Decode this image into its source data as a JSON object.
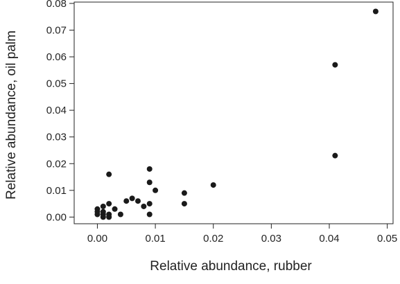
{
  "chart_data": {
    "type": "scatter",
    "title": "",
    "xlabel": "Relative abundance, rubber",
    "ylabel": "Relative abundance, oil palm",
    "xlim": [
      -0.004,
      0.051
    ],
    "ylim": [
      -0.0025,
      0.0805
    ],
    "x_ticks": [
      0.0,
      0.01,
      0.02,
      0.03,
      0.04,
      0.05
    ],
    "x_tick_labels": [
      "0.00",
      "0.01",
      "0.02",
      "0.03",
      "0.04",
      "0.05"
    ],
    "y_ticks": [
      0.0,
      0.01,
      0.02,
      0.03,
      0.04,
      0.05,
      0.06,
      0.07,
      0.08
    ],
    "y_tick_labels": [
      "0.00",
      "0.01",
      "0.02",
      "0.03",
      "0.04",
      "0.05",
      "0.06",
      "0.07",
      "0.08"
    ],
    "grid": false,
    "point_color": "#1a1a1a",
    "series": [
      {
        "points": [
          {
            "x": 0.0,
            "y": 0.001
          },
          {
            "x": 0.0,
            "y": 0.002
          },
          {
            "x": 0.0,
            "y": 0.003
          },
          {
            "x": 0.001,
            "y": 0.0
          },
          {
            "x": 0.001,
            "y": 0.001
          },
          {
            "x": 0.001,
            "y": 0.002
          },
          {
            "x": 0.001,
            "y": 0.004
          },
          {
            "x": 0.002,
            "y": 0.0
          },
          {
            "x": 0.002,
            "y": 0.001
          },
          {
            "x": 0.002,
            "y": 0.005
          },
          {
            "x": 0.002,
            "y": 0.016
          },
          {
            "x": 0.003,
            "y": 0.003
          },
          {
            "x": 0.004,
            "y": 0.001
          },
          {
            "x": 0.005,
            "y": 0.006
          },
          {
            "x": 0.006,
            "y": 0.007
          },
          {
            "x": 0.007,
            "y": 0.006
          },
          {
            "x": 0.008,
            "y": 0.004
          },
          {
            "x": 0.009,
            "y": 0.001
          },
          {
            "x": 0.009,
            "y": 0.005
          },
          {
            "x": 0.009,
            "y": 0.013
          },
          {
            "x": 0.009,
            "y": 0.018
          },
          {
            "x": 0.01,
            "y": 0.01
          },
          {
            "x": 0.015,
            "y": 0.005
          },
          {
            "x": 0.015,
            "y": 0.009
          },
          {
            "x": 0.02,
            "y": 0.012
          },
          {
            "x": 0.041,
            "y": 0.023
          },
          {
            "x": 0.041,
            "y": 0.057
          },
          {
            "x": 0.048,
            "y": 0.077
          }
        ]
      }
    ]
  }
}
